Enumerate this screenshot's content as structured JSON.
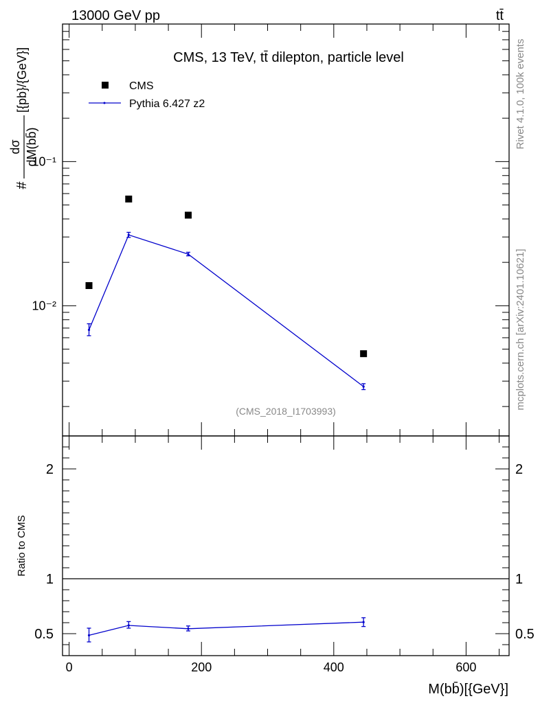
{
  "header": {
    "left": "13000 GeV pp",
    "right": "tt̄"
  },
  "side_labels": {
    "rivet": "Rivet 4.1.0,  100k events",
    "mcplots": "mcplots.cern.ch [arXiv:2401.10621]"
  },
  "chart_data": [
    {
      "type": "line",
      "panel": "main",
      "title": "CMS, 13 TeV, tt̄ dilepton, particle level",
      "annotation": "(CMS_2018_I1703993)",
      "ylabel": "#dσ/dM(bb̄)[{pb}/{GeV}]",
      "ylabel_parts": {
        "prefix": "#",
        "num": "dσ",
        "den": "dM(bb̄)",
        "unit": "[{pb}/{GeV}]"
      },
      "yscale": "log",
      "xlim": [
        -10,
        665
      ],
      "ylim": [
        0.00125,
        0.9
      ],
      "ytick_labels": [
        "10⁻²",
        "10⁻¹"
      ],
      "legend_position": "top-left",
      "series": [
        {
          "name": "CMS",
          "style": "markers",
          "color": "#000000",
          "x": [
            30,
            90,
            180,
            445
          ],
          "y": [
            0.0138,
            0.055,
            0.0425,
            0.00465
          ]
        },
        {
          "name": "Pythia 6.427 z2",
          "style": "line",
          "color": "#0000cc",
          "x": [
            30,
            90,
            180,
            445
          ],
          "y": [
            0.0068,
            0.031,
            0.0228,
            0.00275
          ],
          "err_low": [
            0.0062,
            0.0298,
            0.0222,
            0.00262
          ],
          "err_high": [
            0.0075,
            0.0323,
            0.0235,
            0.00288
          ]
        }
      ]
    },
    {
      "type": "line",
      "panel": "ratio",
      "ylabel": "Ratio to CMS",
      "xlabel": "M(bb̄)[{GeV}]",
      "xlim": [
        -10,
        665
      ],
      "ylim": [
        0.3,
        2.3
      ],
      "xticks": [
        0,
        200,
        400,
        600
      ],
      "yticks": [
        0.5,
        1,
        2
      ],
      "ytick_labels": [
        "0.5",
        "1",
        "2"
      ],
      "series": [
        {
          "name": "Pythia 6.427 z2",
          "color": "#0000cc",
          "x": [
            30,
            90,
            180,
            445
          ],
          "y": [
            0.485,
            0.575,
            0.545,
            0.605
          ],
          "err_low": [
            0.425,
            0.55,
            0.525,
            0.565
          ],
          "err_high": [
            0.55,
            0.61,
            0.57,
            0.645
          ]
        }
      ]
    }
  ]
}
